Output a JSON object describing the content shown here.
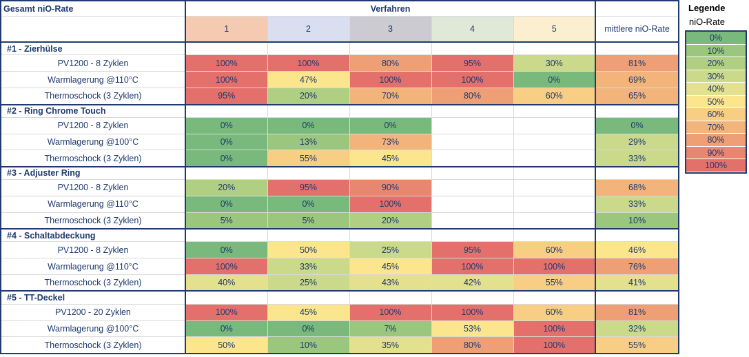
{
  "chart_data": {
    "type": "heatmap",
    "title": "Gesamt niO-Rate",
    "column_group_label": "Verfahren",
    "columns": [
      "1",
      "2",
      "3",
      "4",
      "5"
    ],
    "column_colors": [
      "#f4cbb0",
      "#d9dff0",
      "#cccbd1",
      "#e0e9d7",
      "#fbefcf"
    ],
    "average_label": "mittlere niO-Rate",
    "groups": [
      {
        "name": "#1 - Zierhülse",
        "rows": [
          {
            "label": "PV1200 - 8 Zyklen",
            "values": [
              1.0,
              1.0,
              0.8,
              0.95,
              0.3
            ],
            "average": 0.81,
            "display": [
              "100%",
              "100%",
              "80%",
              "95%",
              "30%"
            ],
            "average_display": "81%"
          },
          {
            "label": "Warmlagerung @110°C",
            "values": [
              1.0,
              0.47,
              1.0,
              1.0,
              0.0
            ],
            "average": 0.69,
            "display": [
              "100%",
              "47%",
              "100%",
              "100%",
              "0%"
            ],
            "average_display": "69%"
          },
          {
            "label": "Thermoschock (3 Zyklen)",
            "values": [
              0.95,
              0.2,
              0.7,
              0.8,
              0.6
            ],
            "average": 0.65,
            "display": [
              "95%",
              "20%",
              "70%",
              "80%",
              "60%"
            ],
            "average_display": "65%"
          }
        ]
      },
      {
        "name": "#2 - Ring Chrome Touch",
        "rows": [
          {
            "label": "PV1200 - 8 Zyklen",
            "values": [
              0.0,
              0.0,
              0.0,
              null,
              null
            ],
            "average": 0.0,
            "display": [
              "0%",
              "0%",
              "0%",
              "",
              ""
            ],
            "average_display": "0%"
          },
          {
            "label": "Warmlagerung @100°C",
            "values": [
              0.0,
              0.13,
              0.73,
              null,
              null
            ],
            "average": 0.29,
            "display": [
              "0%",
              "13%",
              "73%",
              "",
              ""
            ],
            "average_display": "29%"
          },
          {
            "label": "Thermoschock (3 Zyklen)",
            "values": [
              0.0,
              0.55,
              0.45,
              null,
              null
            ],
            "average": 0.33,
            "display": [
              "0%",
              "55%",
              "45%",
              "",
              ""
            ],
            "average_display": "33%"
          }
        ]
      },
      {
        "name": "#3 - Adjuster Ring",
        "rows": [
          {
            "label": "PV1200 - 8 Zyklen",
            "values": [
              0.2,
              0.95,
              0.9,
              null,
              null
            ],
            "average": 0.68,
            "display": [
              "20%",
              "95%",
              "90%",
              "",
              ""
            ],
            "average_display": "68%"
          },
          {
            "label": "Warmlagerung @110°C",
            "values": [
              0.0,
              0.0,
              1.0,
              null,
              null
            ],
            "average": 0.33,
            "display": [
              "0%",
              "0%",
              "100%",
              "",
              ""
            ],
            "average_display": "33%"
          },
          {
            "label": "Thermoschock (3 Zyklen)",
            "values": [
              0.05,
              0.05,
              0.2,
              null,
              null
            ],
            "average": 0.1,
            "display": [
              "5%",
              "5%",
              "20%",
              "",
              ""
            ],
            "average_display": "10%"
          }
        ]
      },
      {
        "name": "#4 - Schaltabdeckung",
        "rows": [
          {
            "label": "PV1200 - 8 Zyklen",
            "values": [
              0.0,
              0.5,
              0.25,
              0.95,
              0.6
            ],
            "average": 0.46,
            "display": [
              "0%",
              "50%",
              "25%",
              "95%",
              "60%"
            ],
            "average_display": "46%"
          },
          {
            "label": "Warmlagerung @110°C",
            "values": [
              1.0,
              0.33,
              0.45,
              1.0,
              1.0
            ],
            "average": 0.76,
            "display": [
              "100%",
              "33%",
              "45%",
              "100%",
              "100%"
            ],
            "average_display": "76%"
          },
          {
            "label": "Thermoschock (3 Zyklen)",
            "values": [
              0.4,
              0.25,
              0.43,
              0.42,
              0.55
            ],
            "average": 0.41,
            "display": [
              "40%",
              "25%",
              "43%",
              "42%",
              "55%"
            ],
            "average_display": "41%"
          }
        ]
      },
      {
        "name": "#5 - TT-Deckel",
        "rows": [
          {
            "label": "PV1200 - 20 Zyklen",
            "values": [
              1.0,
              0.45,
              1.0,
              1.0,
              0.6
            ],
            "average": 0.81,
            "display": [
              "100%",
              "45%",
              "100%",
              "100%",
              "60%"
            ],
            "average_display": "81%"
          },
          {
            "label": "Warmlagerung @100°C",
            "values": [
              0.0,
              0.0,
              0.07,
              0.53,
              1.0
            ],
            "average": 0.32,
            "display": [
              "0%",
              "0%",
              "7%",
              "53%",
              "100%"
            ],
            "average_display": "32%"
          },
          {
            "label": "Thermoschock (3 Zyklen)",
            "values": [
              0.5,
              0.1,
              0.35,
              0.8,
              1.0
            ],
            "average": 0.55,
            "display": [
              "50%",
              "10%",
              "35%",
              "80%",
              "100%"
            ],
            "average_display": "55%"
          }
        ]
      }
    ],
    "legend": {
      "title": "Legende",
      "subtitle": "niO-Rate",
      "items": [
        "0%",
        "10%",
        "20%",
        "30%",
        "40%",
        "50%",
        "60%",
        "70%",
        "80%",
        "90%",
        "100%"
      ],
      "colors": [
        "#79b97b",
        "#9bc67e",
        "#b0cf82",
        "#cbd98a",
        "#e3e08e",
        "#fbe68e",
        "#f8ce84",
        "#f3b47c",
        "#ee9f75",
        "#e8866f",
        "#e4706c"
      ]
    }
  }
}
